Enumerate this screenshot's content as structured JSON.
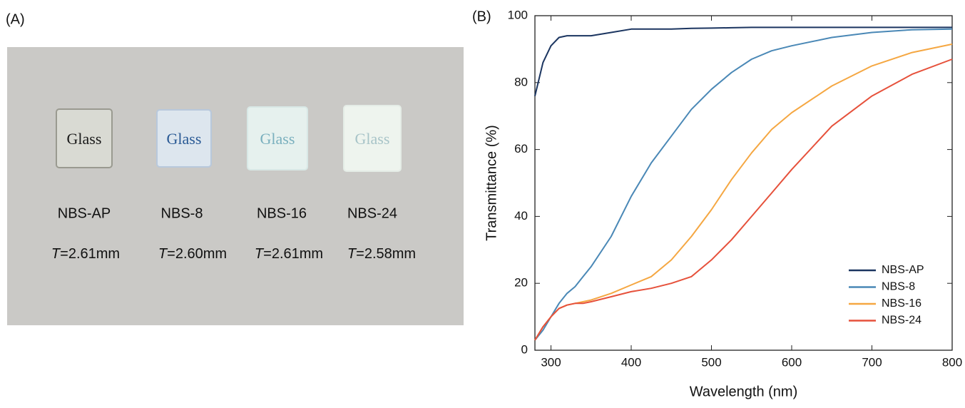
{
  "panel_labels": [
    "(A)",
    "(B)"
  ],
  "photo": {
    "samples": [
      {
        "name": "NBS-AP",
        "glass_text": "Glass",
        "symbol": "T",
        "thickness": "=2.61mm"
      },
      {
        "name": "NBS-8",
        "glass_text": "Glass",
        "symbol": "T",
        "thickness": "=2.60mm"
      },
      {
        "name": "NBS-16",
        "glass_text": "Glass",
        "symbol": "T",
        "thickness": "=2.61mm"
      },
      {
        "name": "NBS-24",
        "glass_text": "Glass",
        "symbol": "T",
        "thickness": "=2.58mm"
      }
    ]
  },
  "chart_data": {
    "type": "line",
    "x_label": "Wavelength (nm)",
    "y_label": "Transmittance (%)",
    "x": [
      280,
      290,
      300,
      310,
      320,
      330,
      340,
      350,
      375,
      400,
      425,
      450,
      475,
      500,
      525,
      550,
      575,
      600,
      650,
      700,
      750,
      800
    ],
    "series": [
      {
        "name": "NBS-AP",
        "color": "#1b3560",
        "values": [
          76,
          86,
          91,
          93.5,
          94,
          94,
          94,
          94,
          95,
          96,
          96,
          96,
          96.2,
          96.3,
          96.4,
          96.5,
          96.5,
          96.5,
          96.5,
          96.5,
          96.5,
          96.5
        ]
      },
      {
        "name": "NBS-8",
        "color": "#4a88b6",
        "values": [
          3,
          6,
          10,
          14,
          17,
          19,
          22,
          25,
          34,
          46,
          56,
          64,
          72,
          78,
          83,
          87,
          89.5,
          91,
          93.5,
          95,
          95.8,
          96
        ]
      },
      {
        "name": "NBS-16",
        "color": "#f5a742",
        "values": [
          3,
          7,
          10,
          12.5,
          13.5,
          14,
          14.5,
          15,
          17,
          19.5,
          22,
          27,
          34,
          42,
          51,
          59,
          66,
          71,
          79,
          85,
          89,
          91.5
        ]
      },
      {
        "name": "NBS-24",
        "color": "#e6513b",
        "values": [
          3,
          7,
          10,
          12.5,
          13.5,
          14,
          14,
          14.5,
          16,
          17.5,
          18.5,
          20,
          22,
          27,
          33,
          40,
          47,
          54,
          67,
          76,
          82.5,
          87
        ]
      }
    ],
    "xlim": [
      280,
      800
    ],
    "xticks": [
      300,
      400,
      500,
      600,
      700,
      800
    ],
    "ylim": [
      0,
      100
    ],
    "yticks": [
      0,
      20,
      40,
      60,
      80,
      100
    ],
    "legend": "lower right"
  }
}
